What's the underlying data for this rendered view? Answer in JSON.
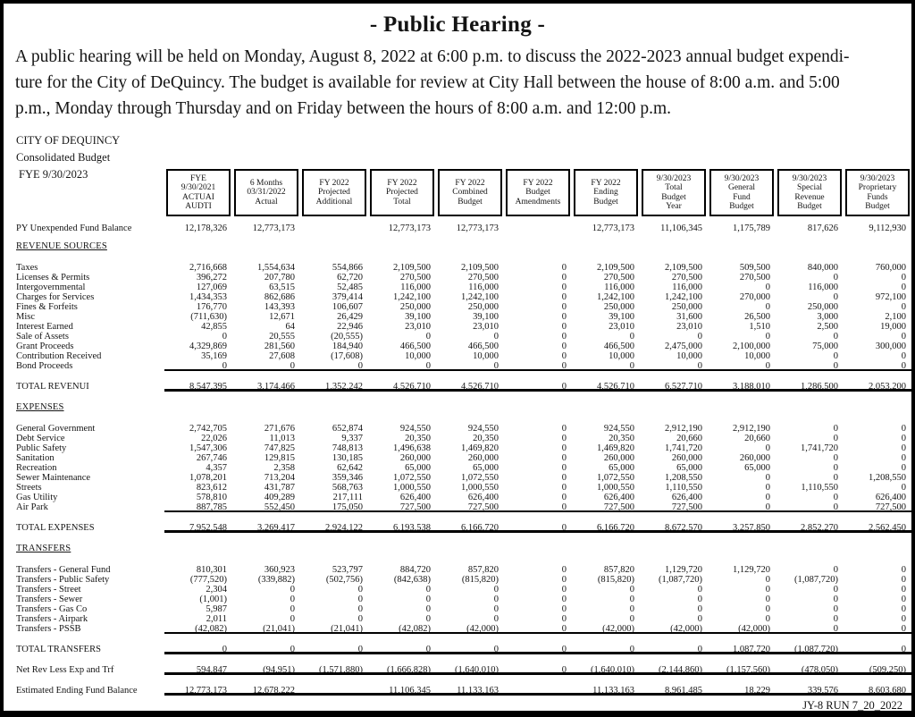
{
  "page": {
    "title": "- Public Hearing -",
    "notice_lines": [
      "A public hearing will be held on Monday, August 8, 2022 at 6:00 p.m. to discuss the 2022-2023 annual budget expendi-",
      "ture for the City of DeQuincy.  The budget is available for review at City Hall between the house of 8:00 a.m. and 5:00",
      "p.m., Monday through Thursday and on Friday between the hours of 8:00 a.m. and 12:00 p.m."
    ],
    "run_stamp": "JY-8 RUN 7_20_2022"
  },
  "org": {
    "name": "CITY OF DEQUINCY",
    "subtitle": "Consolidated Budget",
    "fye": "FYE 9/30/2023"
  },
  "table": {
    "column_headers": [
      [
        "FYE",
        "9/30/2021",
        "ACTUAI",
        "AUDTI"
      ],
      [
        "6 Months",
        "03/31/2022",
        "Actual"
      ],
      [
        "FY 2022",
        "Projected",
        "Additional"
      ],
      [
        "FY 2022",
        "Projected",
        "Total"
      ],
      [
        "FY 2022",
        "Combined",
        "Budget"
      ],
      [
        "FY 2022",
        "Budget",
        "Amendments"
      ],
      [
        "FY 2022",
        "Ending",
        "Budget"
      ],
      [
        "9/30/2023",
        "Total",
        "Budget",
        "Year"
      ],
      [
        "9/30/2023",
        "General",
        "Fund",
        "Budget"
      ],
      [
        "9/30/2023",
        "Special",
        "Revenue",
        "Budget"
      ],
      [
        "9/30/2023",
        "Proprietary",
        "Funds",
        "Budget"
      ]
    ],
    "rows": [
      {
        "kind": "data opening",
        "label": "PY Unexpended Fund Balance",
        "values": [
          "12,178,326",
          "12,773,173",
          "",
          "12,773,173",
          "12,773,173",
          "",
          "12,773,173",
          "11,106,345",
          "1,175,789",
          "817,626",
          "9,112,930"
        ]
      },
      {
        "kind": "section",
        "label": "REVENUE SOURCES"
      },
      {
        "kind": "data",
        "label": "Taxes",
        "values": [
          "2,716,668",
          "1,554,634",
          "554,866",
          "2,109,500",
          "2,109,500",
          "0",
          "2,109,500",
          "2,109,500",
          "509,500",
          "840,000",
          "760,000"
        ]
      },
      {
        "kind": "data",
        "label": "Licenses & Permits",
        "values": [
          "396,272",
          "207,780",
          "62,720",
          "270,500",
          "270,500",
          "0",
          "270,500",
          "270,500",
          "270,500",
          "0",
          "0"
        ]
      },
      {
        "kind": "data",
        "label": "Intergovernmental",
        "values": [
          "127,069",
          "63,515",
          "52,485",
          "116,000",
          "116,000",
          "0",
          "116,000",
          "116,000",
          "0",
          "116,000",
          "0"
        ]
      },
      {
        "kind": "data",
        "label": "Charges for Services",
        "values": [
          "1,434,353",
          "862,686",
          "379,414",
          "1,242,100",
          "1,242,100",
          "0",
          "1,242,100",
          "1,242,100",
          "270,000",
          "0",
          "972,100"
        ]
      },
      {
        "kind": "data",
        "label": "Fines & Forfeits",
        "values": [
          "176,770",
          "143,393",
          "106,607",
          "250,000",
          "250,000",
          "0",
          "250,000",
          "250,000",
          "0",
          "250,000",
          "0"
        ]
      },
      {
        "kind": "data",
        "label": "Misc",
        "values": [
          "(711,630)",
          "12,671",
          "26,429",
          "39,100",
          "39,100",
          "0",
          "39,100",
          "31,600",
          "26,500",
          "3,000",
          "2,100"
        ]
      },
      {
        "kind": "data",
        "label": "Interest Earned",
        "values": [
          "42,855",
          "64",
          "22,946",
          "23,010",
          "23,010",
          "0",
          "23,010",
          "23,010",
          "1,510",
          "2,500",
          "19,000"
        ]
      },
      {
        "kind": "data",
        "label": "Sale of Assets",
        "values": [
          "0",
          "20,555",
          "(20,555)",
          "0",
          "0",
          "0",
          "0",
          "0",
          "0",
          "0",
          "0"
        ]
      },
      {
        "kind": "data",
        "label": "Grant Proceeds",
        "values": [
          "4,329,869",
          "281,560",
          "184,940",
          "466,500",
          "466,500",
          "0",
          "466,500",
          "2,475,000",
          "2,100,000",
          "75,000",
          "300,000"
        ]
      },
      {
        "kind": "data",
        "label": "Contribution Received",
        "values": [
          "35,169",
          "27,608",
          "(17,608)",
          "10,000",
          "10,000",
          "0",
          "10,000",
          "10,000",
          "10,000",
          "0",
          "0"
        ]
      },
      {
        "kind": "data data_rule",
        "label": "Bond Proceeds",
        "values": [
          "0",
          "0",
          "0",
          "0",
          "0",
          "0",
          "0",
          "0",
          "0",
          "0",
          "0"
        ]
      },
      {
        "kind": "total",
        "label": "TOTAL REVENUI",
        "values": [
          "8,547,395",
          "3,174,466",
          "1,352,242",
          "4,526,710",
          "4,526,710",
          "0",
          "4,526,710",
          "6,527,710",
          "3,188,010",
          "1,286,500",
          "2,053,200"
        ]
      },
      {
        "kind": "section",
        "label": "EXPENSES"
      },
      {
        "kind": "data",
        "label": "General Government",
        "values": [
          "2,742,705",
          "271,676",
          "652,874",
          "924,550",
          "924,550",
          "0",
          "924,550",
          "2,912,190",
          "2,912,190",
          "0",
          "0"
        ]
      },
      {
        "kind": "data",
        "label": "Debt Service",
        "values": [
          "22,026",
          "11,013",
          "9,337",
          "20,350",
          "20,350",
          "0",
          "20,350",
          "20,660",
          "20,660",
          "0",
          "0"
        ]
      },
      {
        "kind": "data",
        "label": "Public Safety",
        "values": [
          "1,547,306",
          "747,825",
          "748,813",
          "1,496,638",
          "1,469,820",
          "0",
          "1,469,820",
          "1,741,720",
          "0",
          "1,741,720",
          "0"
        ]
      },
      {
        "kind": "data",
        "label": "Sanitation",
        "values": [
          "267,746",
          "129,815",
          "130,185",
          "260,000",
          "260,000",
          "0",
          "260,000",
          "260,000",
          "260,000",
          "0",
          "0"
        ]
      },
      {
        "kind": "data",
        "label": "Recreation",
        "values": [
          "4,357",
          "2,358",
          "62,642",
          "65,000",
          "65,000",
          "0",
          "65,000",
          "65,000",
          "65,000",
          "0",
          "0"
        ]
      },
      {
        "kind": "data",
        "label": "Sewer Maintenance",
        "values": [
          "1,078,201",
          "713,204",
          "359,346",
          "1,072,550",
          "1,072,550",
          "0",
          "1,072,550",
          "1,208,550",
          "0",
          "0",
          "1,208,550"
        ]
      },
      {
        "kind": "data",
        "label": "Streets",
        "values": [
          "823,612",
          "431,787",
          "568,763",
          "1,000,550",
          "1,000,550",
          "0",
          "1,000,550",
          "1,110,550",
          "0",
          "1,110,550",
          "0"
        ]
      },
      {
        "kind": "data",
        "label": "Gas Utility",
        "values": [
          "578,810",
          "409,289",
          "217,111",
          "626,400",
          "626,400",
          "0",
          "626,400",
          "626,400",
          "0",
          "0",
          "626,400"
        ]
      },
      {
        "kind": "data data_rule",
        "label": "Air Park",
        "values": [
          "887,785",
          "552,450",
          "175,050",
          "727,500",
          "727,500",
          "0",
          "727,500",
          "727,500",
          "0",
          "0",
          "727,500"
        ]
      },
      {
        "kind": "total",
        "label": "TOTAL EXPENSES",
        "values": [
          "7,952,548",
          "3,269,417",
          "2,924,122",
          "6,193,538",
          "6,166,720",
          "0",
          "6,166,720",
          "8,672,570",
          "3,257,850",
          "2,852,270",
          "2,562,450"
        ]
      },
      {
        "kind": "section",
        "label": "TRANSFERS"
      },
      {
        "kind": "data",
        "label": "Transfers - General Fund",
        "values": [
          "810,301",
          "360,923",
          "523,797",
          "884,720",
          "857,820",
          "0",
          "857,820",
          "1,129,720",
          "1,129,720",
          "0",
          "0"
        ]
      },
      {
        "kind": "data",
        "label": "Transfers - Public Safety",
        "values": [
          "(777,520)",
          "(339,882)",
          "(502,756)",
          "(842,638)",
          "(815,820)",
          "0",
          "(815,820)",
          "(1,087,720)",
          "0",
          "(1,087,720)",
          "0"
        ]
      },
      {
        "kind": "data",
        "label": "Transfers - Street",
        "values": [
          "2,304",
          "0",
          "0",
          "0",
          "0",
          "0",
          "0",
          "0",
          "0",
          "0",
          "0"
        ]
      },
      {
        "kind": "data",
        "label": "Transfers - Sewer",
        "values": [
          "(1,001)",
          "0",
          "0",
          "0",
          "0",
          "0",
          "0",
          "0",
          "0",
          "0",
          "0"
        ]
      },
      {
        "kind": "data",
        "label": "Transfers - Gas Co",
        "values": [
          "5,987",
          "0",
          "0",
          "0",
          "0",
          "0",
          "0",
          "0",
          "0",
          "0",
          "0"
        ]
      },
      {
        "kind": "data",
        "label": "Transfers - Airpark",
        "values": [
          "2,011",
          "0",
          "0",
          "0",
          "0",
          "0",
          "0",
          "0",
          "0",
          "0",
          "0"
        ]
      },
      {
        "kind": "data data_rule",
        "label": "Transfers - PSSB",
        "values": [
          "(42,082)",
          "(21,041)",
          "(21,041)",
          "(42,082)",
          "(42,000)",
          "0",
          "(42,000)",
          "(42,000)",
          "(42,000)",
          "0",
          "0"
        ]
      },
      {
        "kind": "total",
        "label": "TOTAL TRANSFERS",
        "values": [
          "0",
          "0",
          "0",
          "0",
          "0",
          "0",
          "0",
          "0",
          "1,087,720",
          "(1,087,720)",
          "0"
        ]
      },
      {
        "kind": "total",
        "label": "Net Rev Less Exp and Trf",
        "values": [
          "594,847",
          "(94,951)",
          "(1,571,880)",
          "(1,666,828)",
          "(1,640,010)",
          "0",
          "(1,640,010)",
          "(2,144,860)",
          "(1,157,560)",
          "(478,050)",
          "(509,250)"
        ]
      },
      {
        "kind": "total",
        "label": "Estimated Ending Fund Balance",
        "values": [
          "12,773,173",
          "12,678,222",
          "",
          "11,106,345",
          "11,133,163",
          "",
          "11,133,163",
          "8,961,485",
          "18,229",
          "339,576",
          "8,603,680"
        ]
      }
    ]
  }
}
